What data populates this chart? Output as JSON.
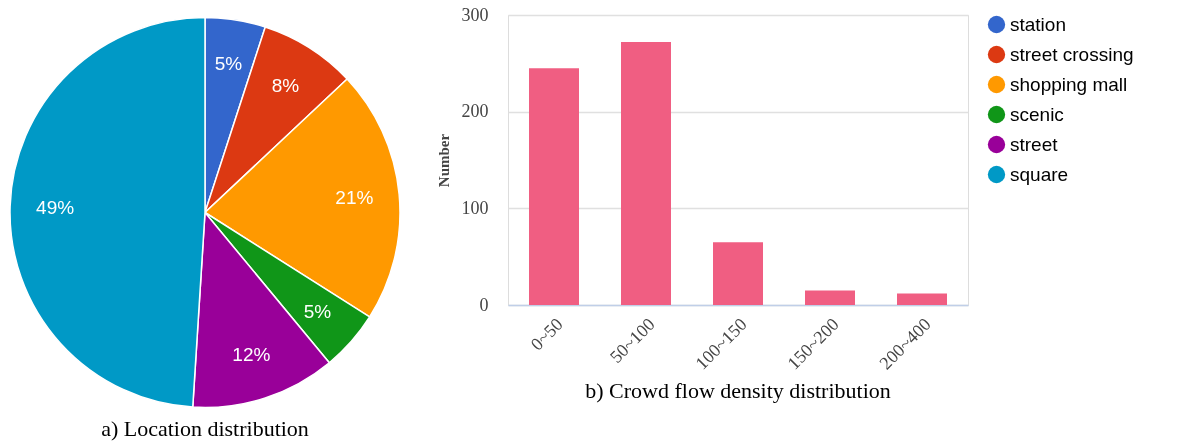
{
  "chart_data": [
    {
      "type": "pie",
      "title": "a) Location distribution",
      "categories": [
        "station",
        "street crossing",
        "shopping mall",
        "scenic",
        "street",
        "square"
      ],
      "values": [
        5,
        8,
        21,
        5,
        12,
        49
      ],
      "colors": [
        "#3366cc",
        "#dc3912",
        "#ff9900",
        "#109618",
        "#990099",
        "#0099c6"
      ],
      "value_labels": [
        "5%",
        "8%",
        "21%",
        "5%",
        "12%",
        "49%"
      ],
      "legend": "top right"
    },
    {
      "type": "bar",
      "title": "b) Crowd flow density distribution",
      "ylabel": "Number",
      "categories": [
        "0~50",
        "50~100",
        "100~150",
        "150~200",
        "200~400"
      ],
      "values": [
        245,
        272,
        65,
        15,
        12
      ],
      "color": "#f05e82",
      "ylim": [
        0,
        300
      ],
      "yticks": [
        0,
        100,
        200,
        300
      ],
      "grid": "y"
    }
  ]
}
